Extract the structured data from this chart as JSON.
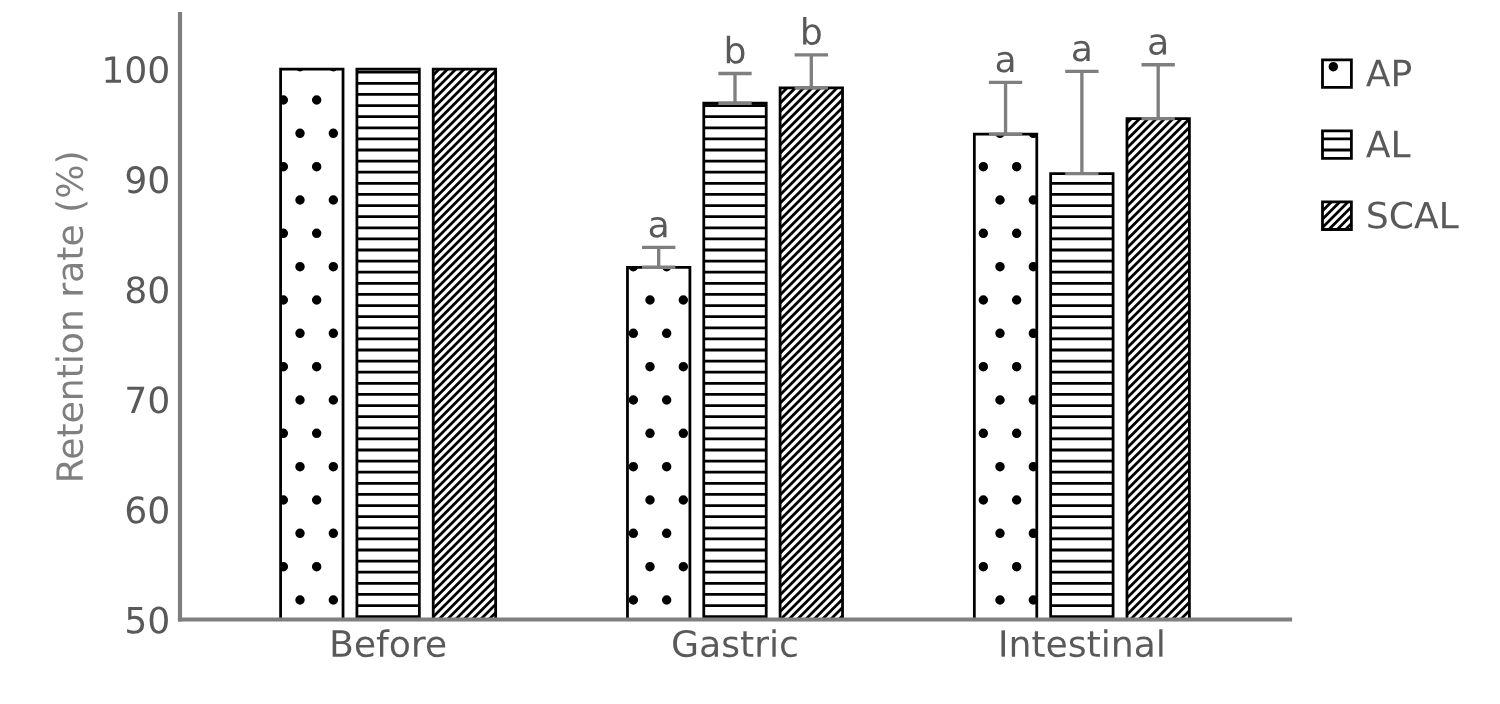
{
  "chart_data": {
    "type": "bar",
    "ylabel": "Retention rate (%)",
    "categories": [
      "Before",
      "Gastric",
      "Intestinal"
    ],
    "series": [
      {
        "name": "AP",
        "color": "#000000",
        "values": [
          100,
          82.0,
          94.1
        ],
        "errors": [
          null,
          1.8,
          4.7
        ],
        "value_labels": [
          null,
          "a",
          "a"
        ]
      },
      {
        "name": "AL",
        "color": "#000000",
        "values": [
          100,
          96.9,
          90.5
        ],
        "errors": [
          null,
          2.7,
          9.3
        ],
        "value_labels": [
          null,
          "b",
          "a"
        ]
      },
      {
        "name": "SCAL",
        "color": "#000000",
        "values": [
          100,
          98.3,
          95.5
        ],
        "errors": [
          null,
          3.0,
          4.9
        ],
        "value_labels": [
          null,
          "b",
          "a"
        ]
      }
    ],
    "ylim": [
      50,
      105
    ],
    "yticks": [
      50,
      60,
      70,
      80,
      90,
      100
    ],
    "grid": false,
    "legend": "right"
  }
}
